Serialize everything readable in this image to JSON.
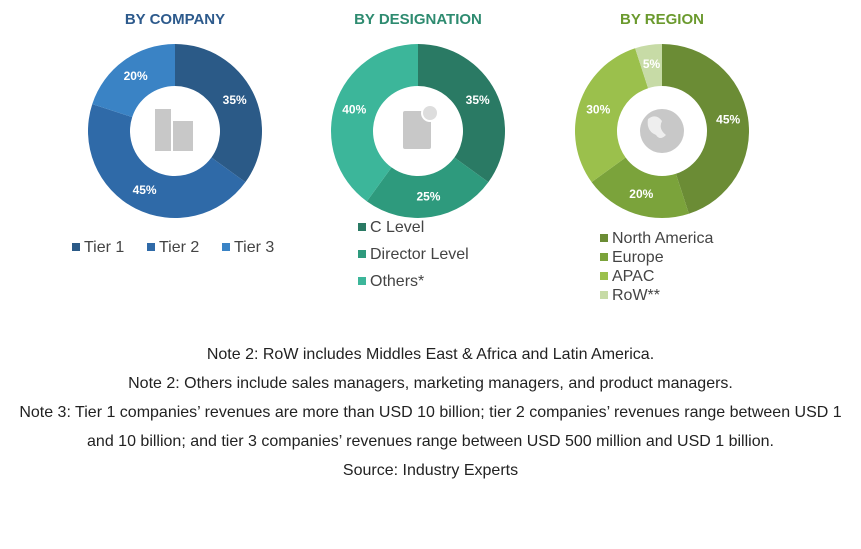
{
  "chart_data": [
    {
      "type": "donut",
      "title": "BY COMPANY",
      "title_color": "#2d5a8c",
      "categories": [
        "Tier 1",
        "Tier 2",
        "Tier 3"
      ],
      "values": [
        35,
        45,
        20
      ],
      "value_labels": [
        "35%",
        "45%",
        "20%"
      ],
      "colors": [
        "#2b5a87",
        "#2f6aa8",
        "#3a83c5"
      ]
    },
    {
      "type": "donut",
      "title": "BY DESIGNATION",
      "title_color": "#2e8b70",
      "categories": [
        "C Level",
        "Director Level",
        "Others*"
      ],
      "values": [
        35,
        25,
        40
      ],
      "value_labels": [
        "35%",
        "25%",
        "40%"
      ],
      "colors": [
        "#2a7a64",
        "#2e9a7d",
        "#3cb69a"
      ]
    },
    {
      "type": "donut",
      "title": "BY REGION",
      "title_color": "#6b9a2e",
      "categories": [
        "North America",
        "Europe",
        "APAC",
        "RoW**"
      ],
      "values": [
        45,
        20,
        30,
        5
      ],
      "value_labels": [
        "45%",
        "20%",
        "30%",
        "5%"
      ],
      "colors": [
        "#6b8c35",
        "#7ba33b",
        "#9bc04c",
        "#c7dba6"
      ]
    }
  ],
  "notes": [
    "Note 2: RoW includes Middles East & Africa and Latin America.",
    "Note 2: Others include sales managers, marketing managers, and product managers.",
    "Note 3: Tier 1 companies’ revenues are more than USD 10 billion; tier 2 companies’ revenues range between USD 1 and 10 billion; and tier 3 companies’ revenues range between USD 500 million and USD 1 billion."
  ],
  "source": "Source: Industry Experts"
}
